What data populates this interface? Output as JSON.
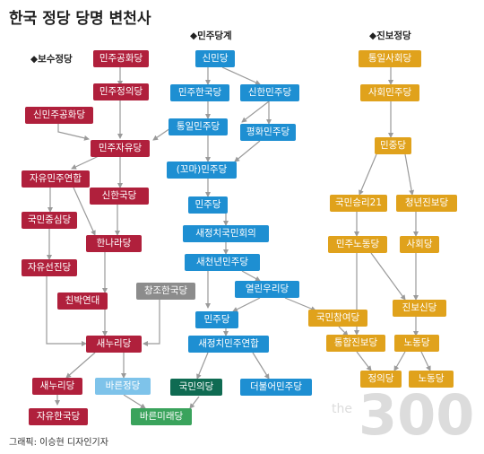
{
  "title": "한국 정당 당명 변천사",
  "sections": [
    {
      "id": "s-conservative",
      "label": "◆보수정당"
    },
    {
      "id": "s-democratic",
      "label": "◆민주당계"
    },
    {
      "id": "s-progressive",
      "label": "◆진보정당"
    }
  ],
  "colors": {
    "conservative": "#b0203c",
    "democratic": "#1e8fd2",
    "progressive": "#e0a21c",
    "gray": "#8c8c8c",
    "teal": "#0f6b52",
    "light_blue": "#7ec3ea",
    "green": "#3aa35c",
    "line": "#9a9a9a",
    "watermark": "#dcdcdc"
  },
  "nodes": [
    {
      "id": "minju-gonghwa",
      "label": "민주공화당",
      "color": "conservative"
    },
    {
      "id": "minju-jeongui",
      "label": "민주정의당",
      "color": "conservative"
    },
    {
      "id": "sinminju-gonghwa",
      "label": "신민주공화당",
      "color": "conservative"
    },
    {
      "id": "minju-jayu",
      "label": "민주자유당",
      "color": "conservative"
    },
    {
      "id": "jayu-minju-yeonhap",
      "label": "자유민주연합",
      "color": "conservative"
    },
    {
      "id": "sinhan-guk",
      "label": "신한국당",
      "color": "conservative"
    },
    {
      "id": "gukmin-jungsim",
      "label": "국민중심당",
      "color": "conservative"
    },
    {
      "id": "hannara",
      "label": "한나라당",
      "color": "conservative"
    },
    {
      "id": "jayu-seonjin",
      "label": "자유선진당",
      "color": "conservative"
    },
    {
      "id": "chinbak-yeondae",
      "label": "친박연대",
      "color": "conservative"
    },
    {
      "id": "saenuri-1",
      "label": "새누리당",
      "color": "conservative"
    },
    {
      "id": "saenuri-2",
      "label": "새누리당",
      "color": "conservative"
    },
    {
      "id": "bareun",
      "label": "바른정당",
      "color": "light_blue"
    },
    {
      "id": "jayu-hanguk",
      "label": "자유한국당",
      "color": "conservative"
    },
    {
      "id": "bareun-mirae",
      "label": "바른미래당",
      "color": "green"
    },
    {
      "id": "sinmin",
      "label": "신민당",
      "color": "democratic"
    },
    {
      "id": "minju-hanguk",
      "label": "민주한국당",
      "color": "democratic"
    },
    {
      "id": "sinhan-minju",
      "label": "신한민주당",
      "color": "democratic"
    },
    {
      "id": "tongil-minju",
      "label": "통일민주당",
      "color": "democratic"
    },
    {
      "id": "pyeonghwa-minju",
      "label": "평화민주당",
      "color": "democratic"
    },
    {
      "id": "kkoma-minju",
      "label": "(꼬마)민주당",
      "color": "democratic"
    },
    {
      "id": "minju-1",
      "label": "민주당",
      "color": "democratic"
    },
    {
      "id": "saejeongchi-gukmin",
      "label": "새정치국민회의",
      "color": "democratic"
    },
    {
      "id": "saecheonnyeon",
      "label": "새천년민주당",
      "color": "democratic"
    },
    {
      "id": "changjo-hanguk",
      "label": "창조한국당",
      "color": "gray"
    },
    {
      "id": "yeollin-uri",
      "label": "열린우리당",
      "color": "democratic"
    },
    {
      "id": "minju-2",
      "label": "민주당",
      "color": "democratic"
    },
    {
      "id": "saejeongchi-minju",
      "label": "새정치민주연합",
      "color": "democratic"
    },
    {
      "id": "gukmin-ui",
      "label": "국민의당",
      "color": "teal"
    },
    {
      "id": "deobureo",
      "label": "더불어민주당",
      "color": "democratic"
    },
    {
      "id": "tongil-sahoe",
      "label": "통일사회당",
      "color": "progressive"
    },
    {
      "id": "sahoe-minju",
      "label": "사회민주당",
      "color": "progressive"
    },
    {
      "id": "minjung",
      "label": "민중당",
      "color": "progressive"
    },
    {
      "id": "gukmin-seungni",
      "label": "국민승리21",
      "color": "progressive"
    },
    {
      "id": "cheongnyeon-jinbo",
      "label": "청년진보당",
      "color": "progressive"
    },
    {
      "id": "minju-nodong",
      "label": "민주노동당",
      "color": "progressive"
    },
    {
      "id": "sahoe",
      "label": "사회당",
      "color": "progressive"
    },
    {
      "id": "jinbo-sin",
      "label": "진보신당",
      "color": "progressive"
    },
    {
      "id": "gukmin-chamyeo",
      "label": "국민참여당",
      "color": "progressive"
    },
    {
      "id": "tonghap-jinbo",
      "label": "통합진보당",
      "color": "progressive"
    },
    {
      "id": "nodong-1",
      "label": "노동당",
      "color": "progressive"
    },
    {
      "id": "jeongui",
      "label": "정의당",
      "color": "progressive"
    },
    {
      "id": "nodong-2",
      "label": "노동당",
      "color": "progressive"
    }
  ],
  "credit": "그래픽: 이승현 디자인기자",
  "watermark": "the300"
}
